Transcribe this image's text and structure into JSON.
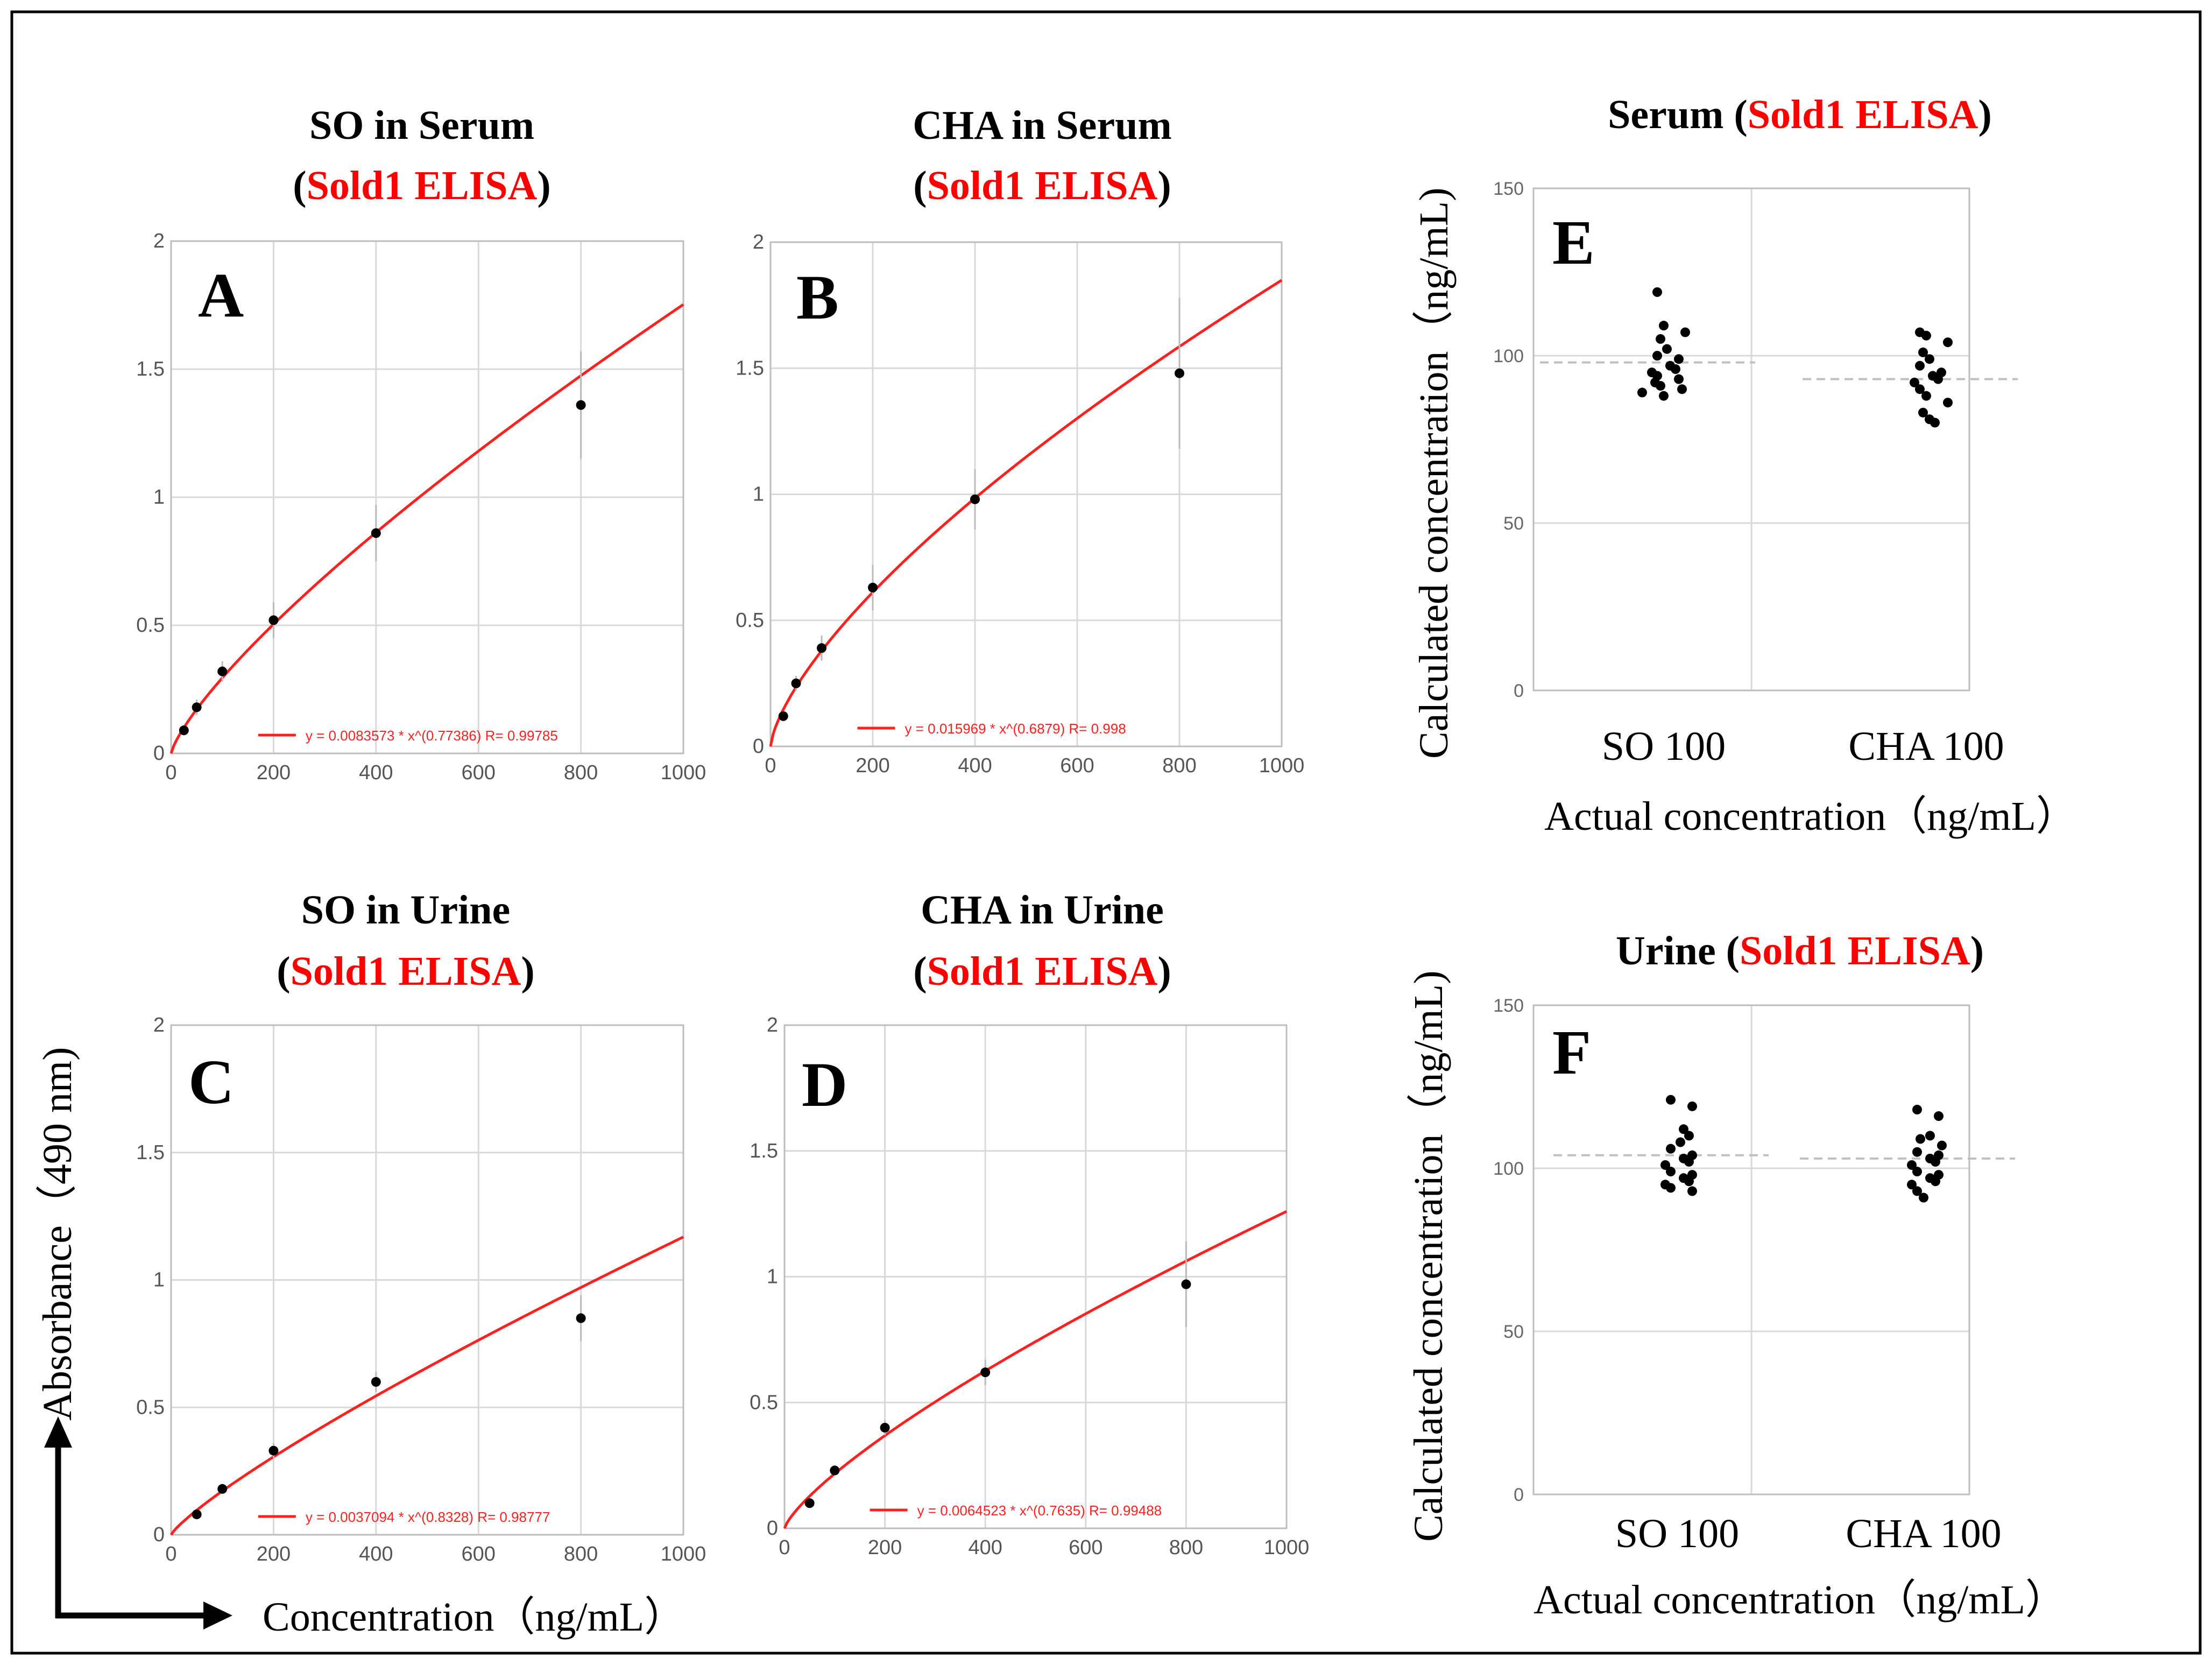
{
  "colors": {
    "highlight": "#ff0000",
    "fit_line": "#ff2020",
    "points": "#000000",
    "grid": "#d9d9d9",
    "mean_line": "#c0c0c0"
  },
  "axes_titles": {
    "absorbance": "Absorbance（490 nm)",
    "concentration": "Concentration（ng/mL）"
  },
  "chart_data": [
    {
      "id": "A",
      "type": "scatter",
      "title_main": "SO in Serum",
      "title_open": "(",
      "title_highlight": "Sold1 ELISA",
      "title_close": ")",
      "x": [
        25,
        50,
        100,
        200,
        400,
        800
      ],
      "y": [
        0.09,
        0.18,
        0.32,
        0.52,
        0.86,
        1.36
      ],
      "err": [
        0.02,
        0.03,
        0.04,
        0.07,
        0.11,
        0.21
      ],
      "fit": {
        "a": 0.0083573,
        "b": 0.77386
      },
      "legend": "y = 0.0083573 * x^(0.77386)   R= 0.99785",
      "xlim": [
        0,
        1000
      ],
      "ylim": [
        0,
        2
      ],
      "xticks": [
        0,
        200,
        400,
        600,
        800,
        1000
      ],
      "yticks": [
        "0",
        "0.5",
        "1",
        "1.5",
        "2"
      ],
      "grid": true
    },
    {
      "id": "B",
      "type": "scatter",
      "title_main": "CHA in Serum",
      "title_open": "(",
      "title_highlight": "Sold1 ELISA",
      "title_close": ")",
      "x": [
        25,
        50,
        100,
        200,
        400,
        800
      ],
      "y": [
        0.12,
        0.25,
        0.39,
        0.63,
        0.98,
        1.48
      ],
      "err": [
        0.02,
        0.03,
        0.05,
        0.09,
        0.12,
        0.3
      ],
      "fit": {
        "a": 0.015969,
        "b": 0.6879
      },
      "legend": "y = 0.015969 * x^(0.6879)   R= 0.998",
      "xlim": [
        0,
        1000
      ],
      "ylim": [
        0,
        2
      ],
      "xticks": [
        0,
        200,
        400,
        600,
        800,
        1000
      ],
      "yticks": [
        "0",
        "0.5",
        "1",
        "1.5",
        "2"
      ],
      "grid": true
    },
    {
      "id": "C",
      "type": "scatter",
      "title_main": "SO in Urine",
      "title_open": "(",
      "title_highlight": "Sold1 ELISA",
      "title_close": ")",
      "x": [
        50,
        100,
        200,
        400,
        800
      ],
      "y": [
        0.08,
        0.18,
        0.33,
        0.6,
        0.85
      ],
      "err": [
        0.01,
        0.02,
        0.03,
        0.04,
        0.09
      ],
      "fit": {
        "a": 0.0037094,
        "b": 0.8328
      },
      "legend": "y = 0.0037094 * x^(0.8328)   R= 0.98777",
      "xlim": [
        0,
        1000
      ],
      "ylim": [
        0,
        2
      ],
      "xticks": [
        0,
        200,
        400,
        600,
        800,
        1000
      ],
      "yticks": [
        "0",
        "0.5",
        "1",
        "1.5",
        "2"
      ],
      "grid": true
    },
    {
      "id": "D",
      "type": "scatter",
      "title_main": "CHA in Urine",
      "title_open": "(",
      "title_highlight": "Sold1 ELISA",
      "title_close": ")",
      "x": [
        50,
        100,
        200,
        400,
        800
      ],
      "y": [
        0.1,
        0.23,
        0.4,
        0.62,
        0.97
      ],
      "err": [
        0.01,
        0.02,
        0.03,
        0.05,
        0.17
      ],
      "fit": {
        "a": 0.0064523,
        "b": 0.7635
      },
      "legend": "y = 0.0064523 * x^(0.7635)   R= 0.99488",
      "xlim": [
        0,
        1000
      ],
      "ylim": [
        0,
        2
      ],
      "xticks": [
        0,
        200,
        400,
        600,
        800,
        1000
      ],
      "yticks": [
        "0",
        "0.5",
        "1",
        "1.5",
        "2"
      ],
      "grid": true
    },
    {
      "id": "E",
      "type": "scatter",
      "title_main": "Serum",
      "title_open": " (",
      "title_highlight": "Sold1 ELISA",
      "title_close": ")",
      "ylabel": "Calculated concentration（ng/mL)",
      "xlabel": "Actual concentration（ng/mL）",
      "categories": [
        "SO 100",
        "CHA 100"
      ],
      "series": [
        {
          "category": "SO 100",
          "values": [
            119,
            109,
            107,
            105,
            102,
            100,
            99,
            97,
            96,
            95,
            94,
            93,
            92,
            91,
            90,
            89,
            88
          ],
          "mean": 98
        },
        {
          "category": "CHA 100",
          "values": [
            107,
            106,
            104,
            101,
            99,
            97,
            95,
            94,
            93,
            92,
            90,
            88,
            86,
            83,
            81,
            80
          ],
          "mean": 93
        }
      ],
      "ylim": [
        0,
        150
      ],
      "yticks": [
        "0",
        "50",
        "100",
        "150"
      ],
      "grid": true
    },
    {
      "id": "F",
      "type": "scatter",
      "title_main": "Urine",
      "title_open": " (",
      "title_highlight": "Sold1 ELISA",
      "title_close": ")",
      "ylabel": "Calculated concentration（ng/mL)",
      "xlabel": "Actual concentration（ng/mL）",
      "categories": [
        "SO 100",
        "CHA 100"
      ],
      "series": [
        {
          "category": "SO 100",
          "values": [
            121,
            119,
            112,
            110,
            108,
            106,
            104,
            103,
            102,
            101,
            99,
            98,
            97,
            96,
            95,
            94,
            93
          ],
          "mean": 104
        },
        {
          "category": "CHA 100",
          "values": [
            118,
            116,
            110,
            109,
            107,
            105,
            104,
            103,
            102,
            101,
            99,
            98,
            97,
            96,
            95,
            93,
            91
          ],
          "mean": 103
        }
      ],
      "ylim": [
        0,
        150
      ],
      "yticks": [
        "0",
        "50",
        "100",
        "150"
      ],
      "grid": true
    }
  ]
}
